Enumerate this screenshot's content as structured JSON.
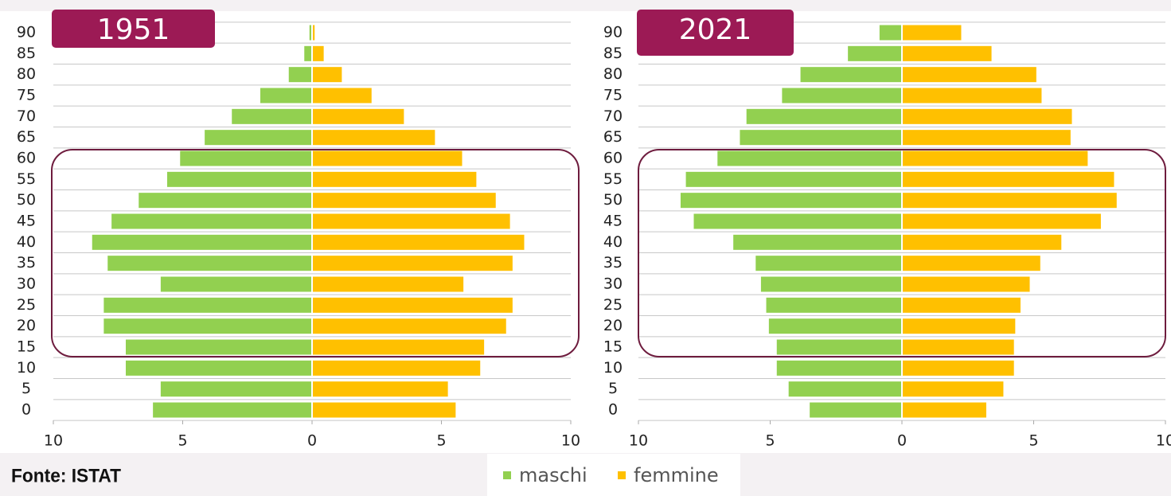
{
  "chart_data": [
    {
      "type": "pyramid",
      "title": "1951",
      "categories": [
        "0",
        "5",
        "10",
        "15",
        "20",
        "25",
        "30",
        "35",
        "40",
        "45",
        "50",
        "55",
        "60",
        "65",
        "70",
        "75",
        "80",
        "85",
        "90"
      ],
      "series": [
        {
          "name": "maschi",
          "color": "#92d050",
          "values": [
            -6.15,
            -5.85,
            -7.2,
            -7.2,
            -8.05,
            -8.05,
            -5.85,
            -7.9,
            -8.5,
            -7.75,
            -6.7,
            -5.6,
            -5.1,
            -4.15,
            -3.1,
            -2.0,
            -0.9,
            -0.3,
            -0.1
          ]
        },
        {
          "name": "femmine",
          "color": "#ffc000",
          "values": [
            5.55,
            5.25,
            6.5,
            6.65,
            7.5,
            7.75,
            5.85,
            7.75,
            8.2,
            7.65,
            7.1,
            6.35,
            5.8,
            4.75,
            3.55,
            2.3,
            1.15,
            0.45,
            0.1
          ]
        }
      ],
      "xlim": [
        -10,
        10
      ],
      "xticks": [
        {
          "value": -10,
          "label": "10"
        },
        {
          "value": -5,
          "label": "5"
        },
        0,
        5,
        10
      ]
    },
    {
      "type": "pyramid",
      "title": "2021",
      "categories": [
        "0",
        "5",
        "10",
        "15",
        "20",
        "25",
        "30",
        "35",
        "40",
        "45",
        "50",
        "55",
        "60",
        "65",
        "70",
        "75",
        "80",
        "85",
        "90"
      ],
      "series": [
        {
          "color": "#92d050",
          "values": [
            -3.5,
            -4.3,
            -4.75,
            -4.75,
            -5.05,
            -5.15,
            -5.35,
            -5.55,
            -6.4,
            -7.9,
            -8.4,
            -8.2,
            -7.0,
            -6.15,
            -5.9,
            -4.55,
            -3.85,
            -2.05,
            -0.85
          ]
        },
        {
          "color": "#ffc000",
          "values": [
            3.2,
            3.85,
            4.25,
            4.25,
            4.3,
            4.5,
            4.85,
            5.25,
            6.05,
            7.55,
            8.15,
            8.05,
            7.05,
            6.4,
            6.45,
            5.3,
            5.1,
            3.4,
            2.25
          ]
        }
      ],
      "xlim": [
        -10,
        10
      ],
      "xticks": [
        {
          "value": -10,
          "label": "10"
        },
        {
          "value": -5,
          "label": "5"
        },
        0,
        5,
        10
      ]
    }
  ],
  "source": "Fonte: ISTAT"
}
